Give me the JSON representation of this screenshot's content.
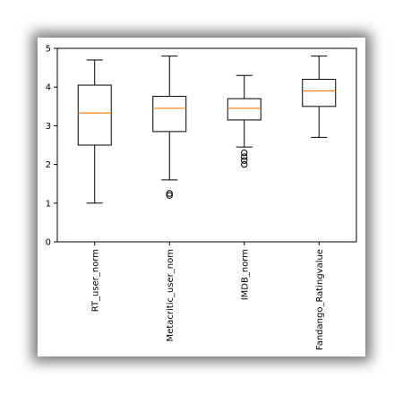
{
  "chart_data": {
    "type": "box",
    "categories": [
      "RT_user_norm",
      "Metacritic_user_nom",
      "IMDB_norm",
      "Fandango_Ratingvalue"
    ],
    "y_ticks": [
      "0",
      "1",
      "2",
      "3",
      "4",
      "5"
    ],
    "ylim": [
      0,
      5
    ],
    "grid": false,
    "boxes": [
      {
        "whisker_low": 1.0,
        "q1": 2.5,
        "median": 3.33,
        "q3": 4.05,
        "whisker_high": 4.7,
        "outliers": []
      },
      {
        "whisker_low": 1.6,
        "q1": 2.85,
        "median": 3.45,
        "q3": 3.76,
        "whisker_high": 4.8,
        "outliers": [
          1.2,
          1.25
        ]
      },
      {
        "whisker_low": 2.45,
        "q1": 3.15,
        "median": 3.45,
        "q3": 3.7,
        "whisker_high": 4.3,
        "outliers": [
          2.0,
          2.1,
          2.2,
          2.3
        ]
      },
      {
        "whisker_low": 2.7,
        "q1": 3.5,
        "median": 3.9,
        "q3": 4.2,
        "whisker_high": 4.8,
        "outliers": []
      }
    ],
    "colors": {
      "box": "#000000",
      "median": "#ff7f0e",
      "outlier_face": "none",
      "outlier_edge": "#000000"
    }
  }
}
